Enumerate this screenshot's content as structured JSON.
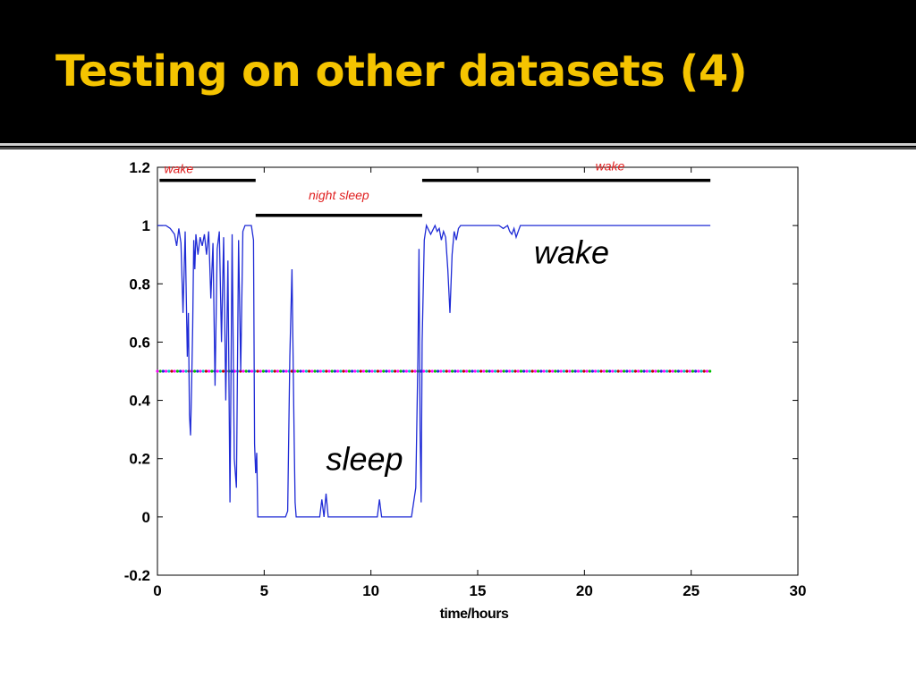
{
  "slide": {
    "title": "Testing on other datasets (4)",
    "colors": {
      "title": "#f5c400",
      "background": "#000000",
      "canvas": "#ffffff"
    }
  },
  "chart_data": {
    "type": "line",
    "xlabel": "time/hours",
    "ylabel": "",
    "xlim": [
      0,
      30
    ],
    "ylim": [
      -0.2,
      1.2
    ],
    "xticks": [
      0,
      5,
      10,
      15,
      20,
      25,
      30
    ],
    "yticks": [
      -0.2,
      0,
      0.2,
      0.4,
      0.6,
      0.8,
      1,
      1.2
    ],
    "ytick_labels": [
      "-0.2",
      "0",
      "0.2",
      "0.4",
      "0.6",
      "0.8",
      "1",
      "1.2"
    ],
    "grid": false,
    "series": [
      {
        "color": "#1f2bd6",
        "x": [
          0,
          0.4,
          0.6,
          0.8,
          0.9,
          1.0,
          1.1,
          1.2,
          1.3,
          1.4,
          1.45,
          1.5,
          1.55,
          1.6,
          1.65,
          1.7,
          1.75,
          1.8,
          1.9,
          2.0,
          2.1,
          2.2,
          2.3,
          2.4,
          2.5,
          2.6,
          2.7,
          2.8,
          2.9,
          3.0,
          3.1,
          3.2,
          3.3,
          3.4,
          3.5,
          3.6,
          3.7,
          3.8,
          3.9,
          4.0,
          4.1,
          4.2,
          4.3,
          4.4,
          4.5,
          4.55,
          4.6,
          4.65,
          4.7,
          4.8,
          4.9,
          5.0,
          5.2,
          5.5,
          5.8,
          6.0,
          6.1,
          6.2,
          6.3,
          6.4,
          6.45,
          6.5,
          6.6,
          6.7,
          6.8,
          7.0,
          7.2,
          7.4,
          7.6,
          7.7,
          7.8,
          7.9,
          8.0,
          8.2,
          8.5,
          9.0,
          9.5,
          10.0,
          10.3,
          10.4,
          10.5,
          10.7,
          11.0,
          11.5,
          11.9,
          12.0,
          12.1,
          12.2,
          12.25,
          12.3,
          12.35,
          12.4,
          12.5,
          12.6,
          12.8,
          13.0,
          13.1,
          13.2,
          13.3,
          13.4,
          13.5,
          13.6,
          13.7,
          13.8,
          13.9,
          14.0,
          14.1,
          14.2,
          14.4,
          14.6,
          15.0,
          15.5,
          16.0,
          16.2,
          16.4,
          16.5,
          16.6,
          16.7,
          16.8,
          16.9,
          17.0,
          17.2,
          17.5,
          18.0,
          19.0,
          20.0,
          21.0,
          22.0,
          23.0,
          24.0,
          25.0,
          25.9
        ],
        "y": [
          1.0,
          1.0,
          0.99,
          0.97,
          0.93,
          0.99,
          0.94,
          0.7,
          0.98,
          0.55,
          0.7,
          0.35,
          0.28,
          0.45,
          0.65,
          0.95,
          0.85,
          0.97,
          0.9,
          0.96,
          0.93,
          0.97,
          0.9,
          0.98,
          0.75,
          0.94,
          0.45,
          0.92,
          0.98,
          0.6,
          0.96,
          0.4,
          0.88,
          0.05,
          0.97,
          0.2,
          0.1,
          0.95,
          0.5,
          0.98,
          1.0,
          1.0,
          1.0,
          1.0,
          0.95,
          0.25,
          0.15,
          0.22,
          0.0,
          0.0,
          0.0,
          0.0,
          0.0,
          0.0,
          0.0,
          0.0,
          0.02,
          0.55,
          0.85,
          0.3,
          0.05,
          0.0,
          0.0,
          0.0,
          0.0,
          0.0,
          0.0,
          0.0,
          0.0,
          0.06,
          0.0,
          0.08,
          0.0,
          0.0,
          0.0,
          0.0,
          0.0,
          0.0,
          0.0,
          0.06,
          0.0,
          0.0,
          0.0,
          0.0,
          0.0,
          0.05,
          0.1,
          0.55,
          0.92,
          0.3,
          0.05,
          0.6,
          0.95,
          1.0,
          0.97,
          1.0,
          0.98,
          0.99,
          0.95,
          0.98,
          0.96,
          0.85,
          0.7,
          0.9,
          0.98,
          0.95,
          0.99,
          1.0,
          1.0,
          1.0,
          1.0,
          1.0,
          1.0,
          0.99,
          1.0,
          0.98,
          0.97,
          0.99,
          0.96,
          0.98,
          1.0,
          1.0,
          1.0,
          1.0,
          1.0,
          1.0,
          1.0,
          1.0,
          1.0,
          1.0,
          1.0,
          1.0
        ]
      },
      {
        "color": "#ff00ff",
        "dotted": true,
        "x": [
          0,
          25.9
        ],
        "y": [
          0.5,
          0.5
        ]
      }
    ],
    "annotations": [
      {
        "text": "wake",
        "x": 1.0,
        "y": 1.18,
        "color": "#e02020",
        "style": "italic",
        "size": "small"
      },
      {
        "text": "night sleep",
        "x": 8.5,
        "y": 1.09,
        "color": "#e02020",
        "style": "italic",
        "size": "small"
      },
      {
        "text": "wake",
        "x": 21.2,
        "y": 1.19,
        "color": "#e02020",
        "style": "italic",
        "size": "small"
      },
      {
        "text": "wake",
        "x": 19.4,
        "y": 0.87,
        "color": "#000000",
        "style": "italic",
        "size": "large"
      },
      {
        "text": "sleep",
        "x": 9.7,
        "y": 0.16,
        "color": "#000000",
        "style": "italic",
        "size": "large"
      }
    ],
    "period_bars": [
      {
        "x": [
          0.1,
          4.6
        ],
        "y": 1.155
      },
      {
        "x": [
          4.6,
          12.4
        ],
        "y": 1.035
      },
      {
        "x": [
          12.4,
          25.9
        ],
        "y": 1.155
      }
    ]
  }
}
